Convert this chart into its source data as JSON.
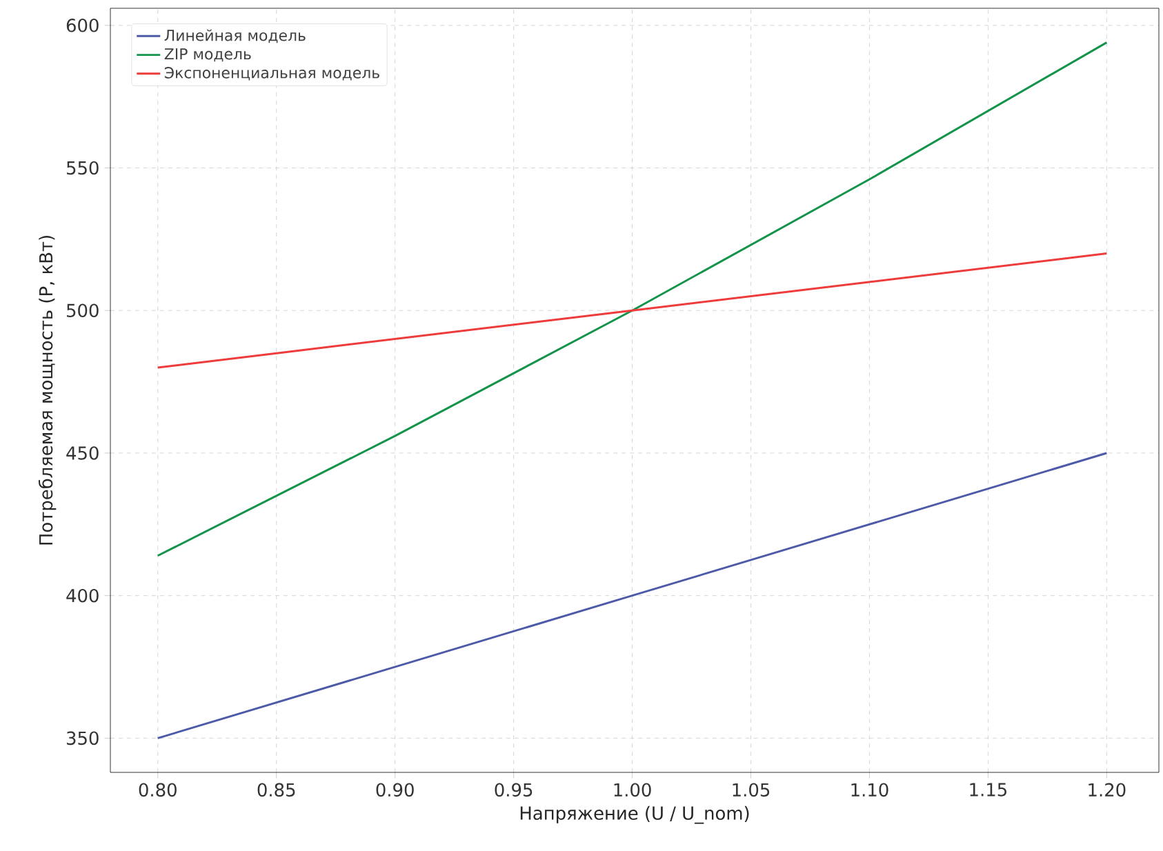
{
  "chart_data": {
    "type": "line",
    "xlabel": "Напряжение (U / U_nom)",
    "ylabel": "Потребляемая мощность (P, кВт)",
    "series": [
      {
        "name": "Линейная модель",
        "color": "#4c5aa8",
        "x": [
          0.8,
          1.0,
          1.2
        ],
        "values": [
          350,
          400,
          450
        ]
      },
      {
        "name": "ZIP модель",
        "color": "#14934a",
        "x": [
          0.8,
          0.9,
          1.0,
          1.1,
          1.2
        ],
        "values": [
          414,
          456,
          500,
          546,
          594
        ]
      },
      {
        "name": "Экспоненциальная модель",
        "color": "#ee3b3b",
        "x": [
          0.8,
          1.0,
          1.2
        ],
        "values": [
          480,
          500,
          520
        ]
      }
    ],
    "xlim": [
      0.78,
      1.222
    ],
    "ylim": [
      338,
      606
    ],
    "xticks": [
      {
        "value": 0.8,
        "label": "0.80"
      },
      {
        "value": 0.85,
        "label": "0.85"
      },
      {
        "value": 0.9,
        "label": "0.90"
      },
      {
        "value": 0.95,
        "label": "0.95"
      },
      {
        "value": 1.0,
        "label": "1.00"
      },
      {
        "value": 1.05,
        "label": "1.05"
      },
      {
        "value": 1.1,
        "label": "1.10"
      },
      {
        "value": 1.15,
        "label": "1.15"
      },
      {
        "value": 1.2,
        "label": "1.20"
      }
    ],
    "yticks": [
      350,
      400,
      450,
      500,
      550,
      600
    ],
    "grid": true,
    "legend": "top left",
    "line_style": "solid",
    "marker": "none"
  }
}
